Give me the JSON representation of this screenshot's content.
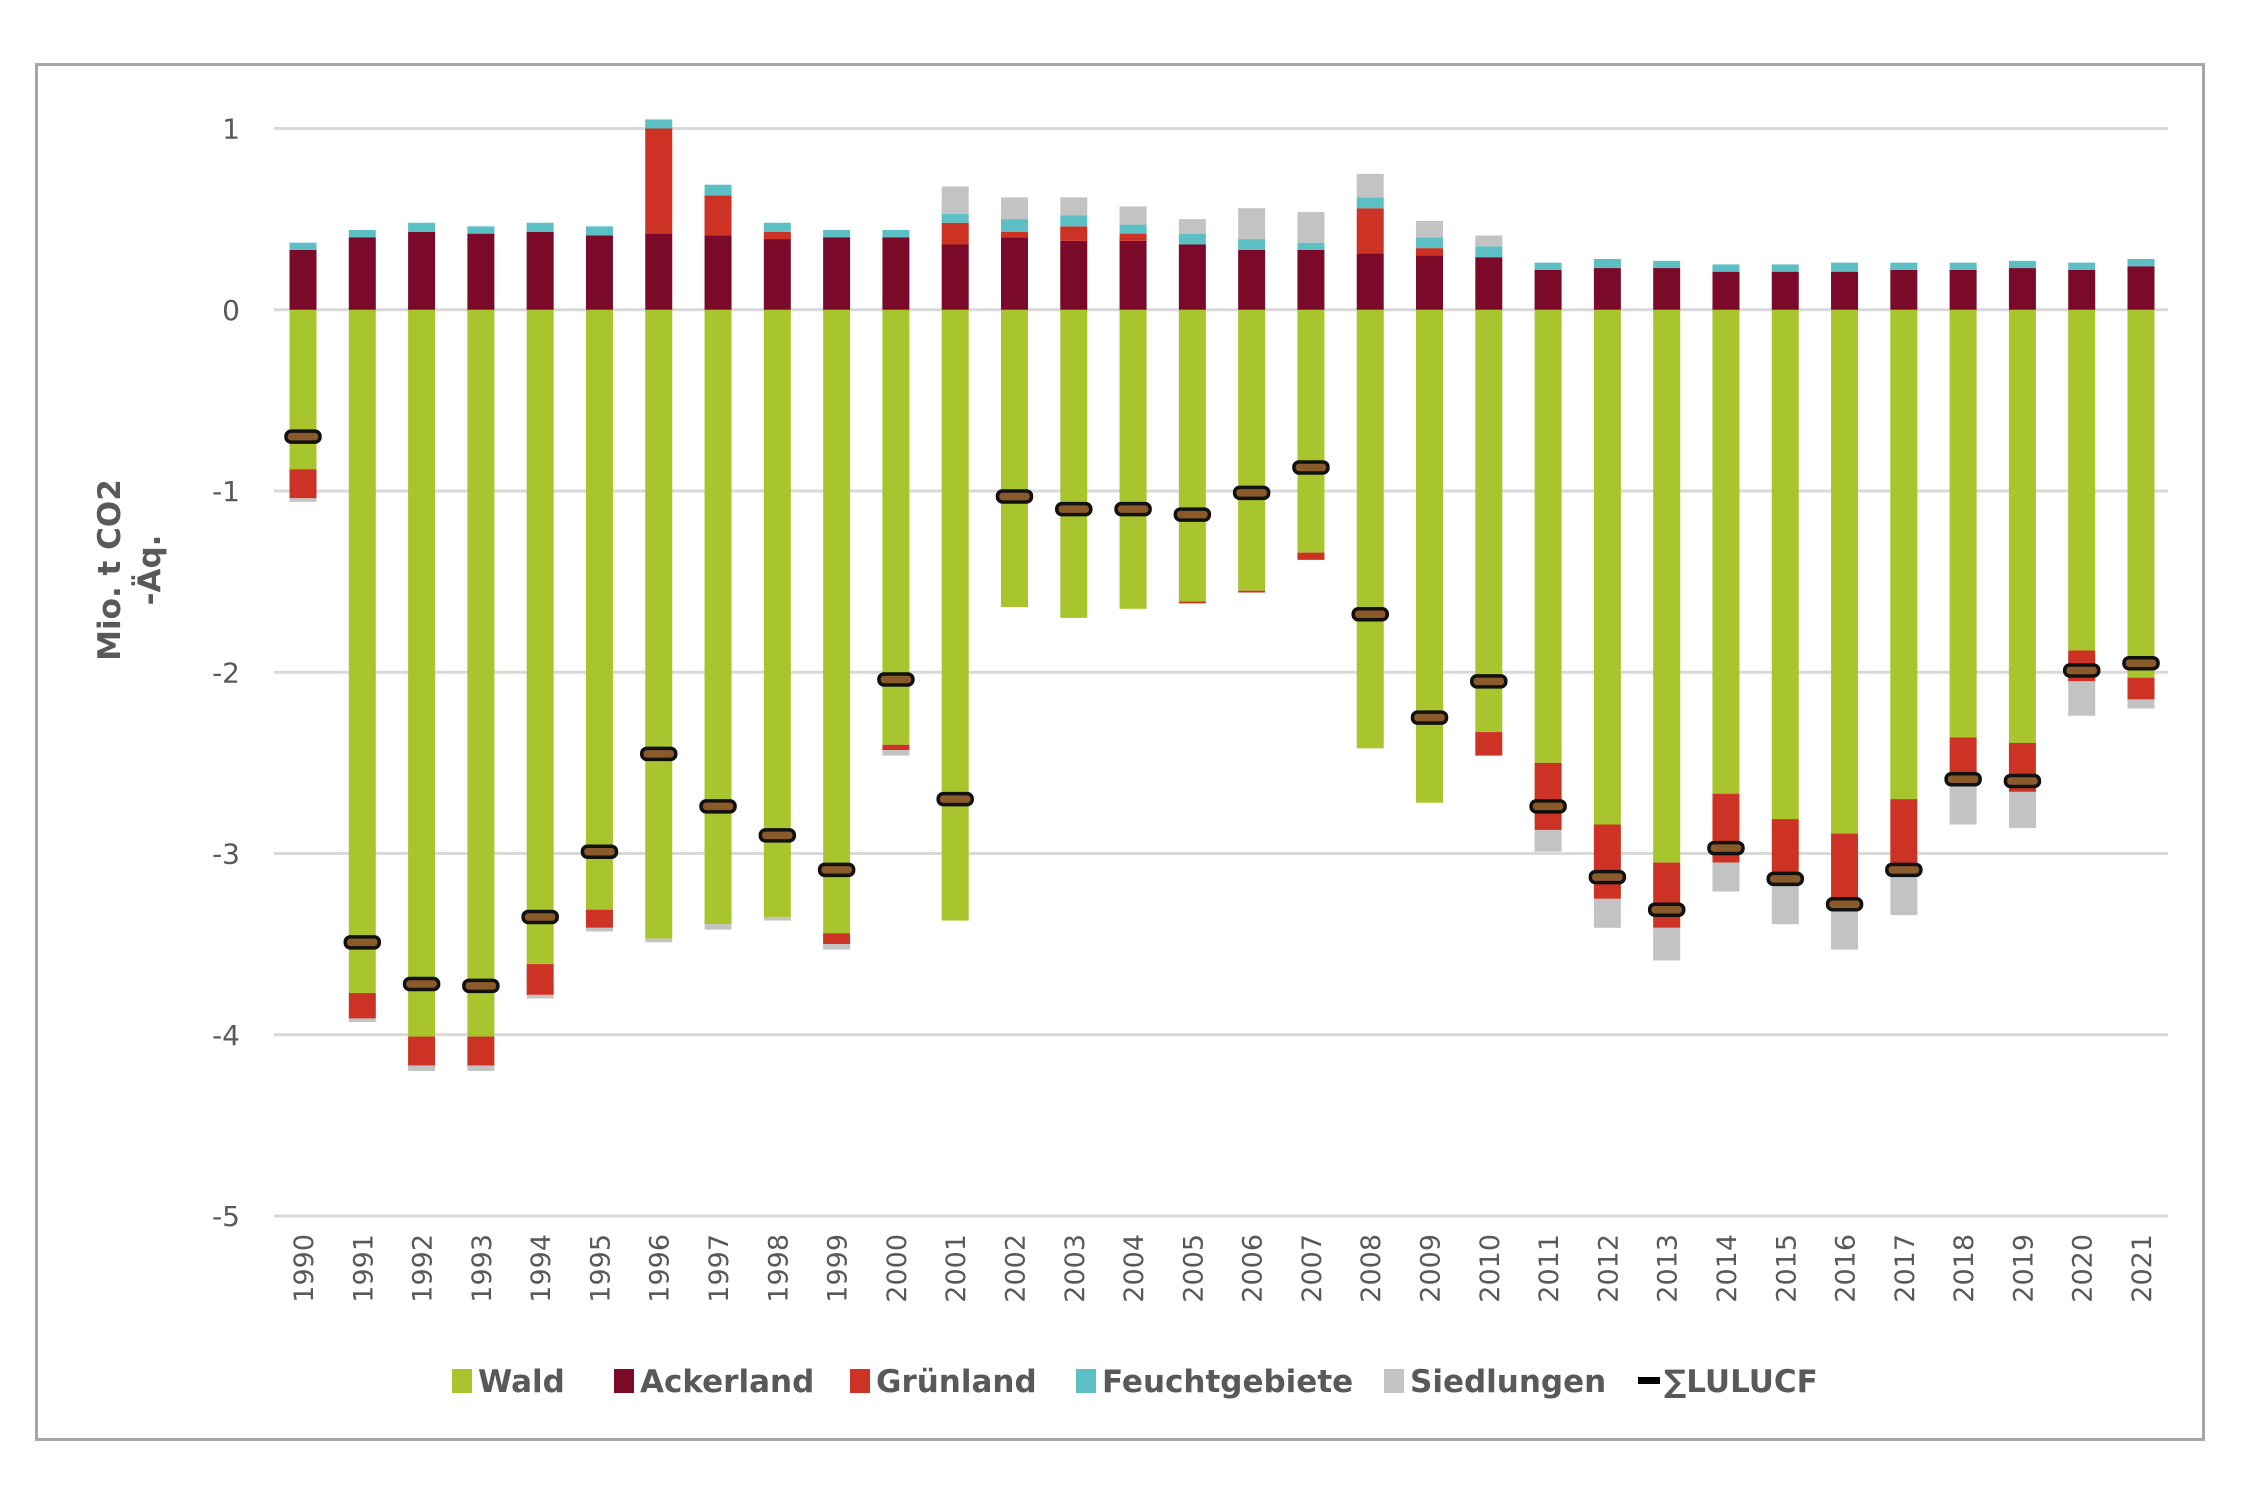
{
  "chart_data": {
    "type": "bar",
    "stacked": true,
    "title": "",
    "xlabel": "",
    "ylabel": "Mio. t CO2\n-Äq.",
    "ylabel_lines": [
      "Mio. t CO2",
      "-Äq."
    ],
    "ylim": [
      -5,
      1
    ],
    "yticks": [
      1,
      0,
      -1,
      -2,
      -3,
      -4,
      -5
    ],
    "grid": true,
    "legend_position": "bottom",
    "categories": [
      "1990",
      "1991",
      "1992",
      "1993",
      "1994",
      "1995",
      "1996",
      "1997",
      "1998",
      "1999",
      "2000",
      "2001",
      "2002",
      "2003",
      "2004",
      "2005",
      "2006",
      "2007",
      "2008",
      "2009",
      "2010",
      "2011",
      "2012",
      "2013",
      "2014",
      "2015",
      "2016",
      "2017",
      "2018",
      "2019",
      "2020",
      "2021"
    ],
    "series": [
      {
        "name": "Wald",
        "color": "#a8c52e",
        "values": [
          -0.88,
          -3.77,
          -4.01,
          -4.01,
          -3.61,
          -3.31,
          -3.47,
          -3.39,
          -3.35,
          -3.44,
          -2.4,
          -3.37,
          -1.64,
          -1.7,
          -1.65,
          -1.61,
          -1.55,
          -1.34,
          -2.42,
          -2.72,
          -2.33,
          -2.5,
          -2.84,
          -3.05,
          -2.67,
          -2.81,
          -2.89,
          -2.7,
          -2.36,
          -2.39,
          -1.88,
          -2.03
        ]
      },
      {
        "name": "Ackerland",
        "color": "#7b0a2a",
        "values": [
          0.33,
          0.4,
          0.43,
          0.42,
          0.43,
          0.41,
          0.42,
          0.41,
          0.39,
          0.4,
          0.4,
          0.36,
          0.4,
          0.38,
          0.38,
          0.36,
          0.33,
          0.33,
          0.31,
          0.3,
          0.29,
          0.22,
          0.23,
          0.23,
          0.21,
          0.21,
          0.21,
          0.22,
          0.22,
          0.23,
          0.22,
          0.24
        ]
      },
      {
        "name": "Grünland",
        "color": "#cc3324",
        "values": [
          -0.16,
          -0.14,
          -0.16,
          -0.16,
          -0.17,
          -0.1,
          0.58,
          0.22,
          0.04,
          -0.06,
          -0.03,
          0.12,
          0.03,
          0.08,
          0.04,
          -0.01,
          -0.01,
          -0.04,
          0.25,
          0.04,
          -0.13,
          -0.37,
          -0.41,
          -0.36,
          -0.38,
          -0.37,
          -0.42,
          -0.37,
          -0.24,
          -0.27,
          -0.17,
          -0.12
        ]
      },
      {
        "name": "Feuchtgebiete",
        "color": "#5bbfc4",
        "values": [
          0.04,
          0.04,
          0.05,
          0.04,
          0.05,
          0.05,
          0.05,
          0.06,
          0.05,
          0.04,
          0.04,
          0.05,
          0.07,
          0.06,
          0.05,
          0.06,
          0.06,
          0.04,
          0.06,
          0.06,
          0.06,
          0.04,
          0.05,
          0.04,
          0.04,
          0.04,
          0.05,
          0.04,
          0.04,
          0.04,
          0.04,
          0.04
        ]
      },
      {
        "name": "Siedlungen",
        "color": "#c3c3c3",
        "values": [
          -0.02,
          -0.02,
          -0.03,
          -0.03,
          -0.02,
          -0.02,
          -0.02,
          -0.03,
          -0.02,
          -0.03,
          -0.03,
          0.15,
          0.12,
          0.1,
          0.1,
          0.08,
          0.17,
          0.17,
          0.13,
          0.09,
          0.06,
          -0.12,
          -0.16,
          -0.18,
          -0.16,
          -0.21,
          -0.22,
          -0.27,
          -0.24,
          -0.2,
          -0.19,
          -0.05
        ]
      }
    ],
    "total": {
      "name": "∑LULUCF",
      "color": "#000000",
      "marker": "dash",
      "values": [
        -0.7,
        -3.49,
        -3.72,
        -3.73,
        -3.35,
        -2.99,
        -2.45,
        -2.74,
        -2.9,
        -3.09,
        -2.04,
        -2.7,
        -1.03,
        -1.1,
        -1.1,
        -1.13,
        -1.01,
        -0.87,
        -1.68,
        -2.25,
        -2.05,
        -2.74,
        -3.13,
        -3.31,
        -2.97,
        -3.14,
        -3.28,
        -3.09,
        -2.59,
        -2.6,
        -1.99,
        -1.95
      ]
    }
  },
  "legend": [
    {
      "label": "Wald",
      "color": "#a8c52e",
      "icon": "square"
    },
    {
      "label": "Ackerland",
      "color": "#7b0a2a",
      "icon": "square"
    },
    {
      "label": "Grünland",
      "color": "#cc3324",
      "icon": "square"
    },
    {
      "label": "Feuchtgebiete",
      "color": "#5bbfc4",
      "icon": "square"
    },
    {
      "label": "Siedlungen",
      "color": "#c3c3c3",
      "icon": "square"
    },
    {
      "label": "∑LULUCF",
      "color": "#000000",
      "icon": "dash"
    }
  ]
}
